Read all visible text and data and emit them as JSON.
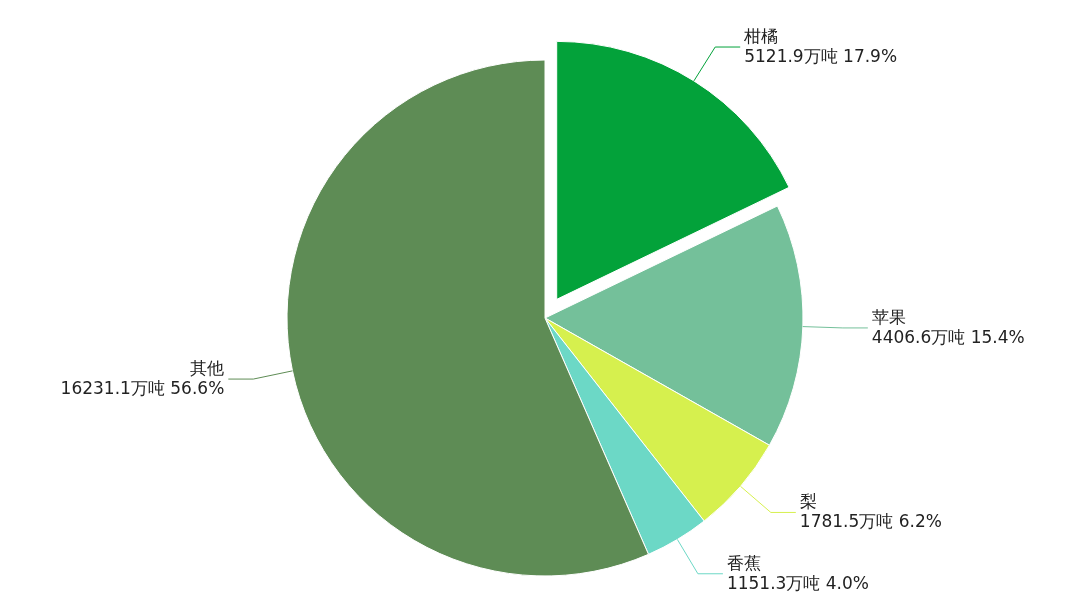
{
  "chart_data": {
    "type": "pie",
    "categories": [
      "柑橘",
      "苹果",
      "梨",
      "香蕉",
      "其他"
    ],
    "values": [
      5121.9,
      4406.6,
      1781.5,
      1151.3,
      16231.1
    ],
    "colors": [
      "#03a23a",
      "#74c09a",
      "#d6f04e",
      "#6cd8c6",
      "#5e8c55"
    ],
    "value_labels": [
      "5121.9万吨  17.9%",
      "4406.6万吨  15.4%",
      "1781.5万吨  6.2%",
      "1151.3万吨  4.0%",
      "16231.1万吨  56.6%"
    ]
  }
}
